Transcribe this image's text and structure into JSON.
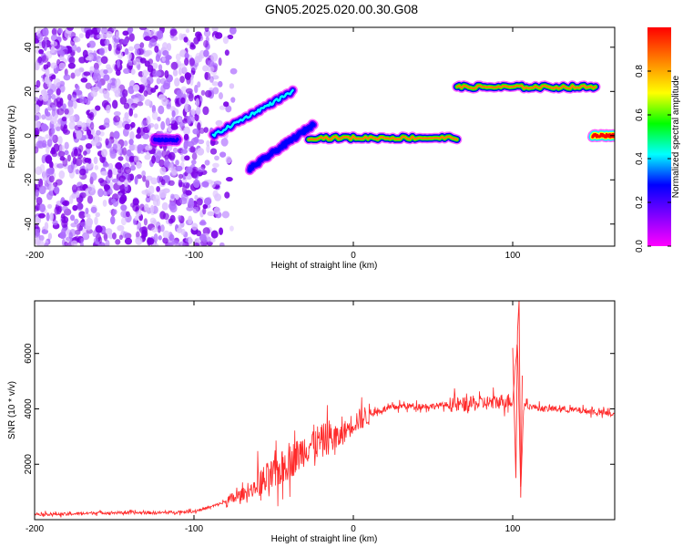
{
  "title": "GN05.2025.020.00.30.G08",
  "chart_data": [
    {
      "type": "heatmap",
      "xlabel": "Height of straight line (km)",
      "ylabel": "Frequency (Hz)",
      "xlim": [
        -200,
        164
      ],
      "ylim": [
        -50,
        49
      ],
      "xticks": [
        -200,
        -100,
        0,
        100
      ],
      "yticks": [
        -40,
        -20,
        0,
        20,
        40
      ],
      "colorbar": {
        "label": "Normalized spectral amplitude",
        "range": [
          0,
          1
        ],
        "ticks": [
          0.0,
          0.2,
          0.4,
          0.6,
          0.8
        ],
        "tick_labels": [
          "0.0",
          "0.2",
          "0.4",
          "0.6",
          "0.8"
        ],
        "colors": [
          "#ff00ff",
          "#8000ff",
          "#0000ff",
          "#00ffff",
          "#00ff00",
          "#ffff00",
          "#ff8000",
          "#ff0000"
        ]
      },
      "features": [
        {
          "x_start": -200,
          "x_end": -85,
          "freq": "scattered noise -50..49",
          "amplitude": 0.15
        },
        {
          "x_start": -125,
          "x_end": -110,
          "freq": -2,
          "amplitude": 0.3
        },
        {
          "x_start": -88,
          "x_end": -38,
          "freq_start": 0,
          "freq_end": 20,
          "amplitude": 0.4
        },
        {
          "x_start": -65,
          "x_end": -25,
          "freq_start": -15,
          "freq_end": 5,
          "amplitude": 0.35
        },
        {
          "x_start": -28,
          "x_end": 65,
          "freq": -1,
          "amplitude": 0.75
        },
        {
          "x_start": 65,
          "x_end": 152,
          "freq": 22,
          "amplitude": 0.8
        },
        {
          "x_start": 150,
          "x_end": 164,
          "freq": 0,
          "amplitude": 0.9
        }
      ]
    },
    {
      "type": "line",
      "xlabel": "Height of straight line (km)",
      "ylabel": "SNR (10 * v/v)",
      "xlim": [
        -200,
        164
      ],
      "ylim": [
        0,
        7900
      ],
      "xticks": [
        -200,
        -100,
        0,
        100
      ],
      "yticks": [
        2000,
        4000,
        6000
      ],
      "color": "#ff2a2a",
      "series": [
        {
          "x": [
            -200,
            -180,
            -160,
            -140,
            -120,
            -100,
            -90,
            -80,
            -70,
            -60,
            -50,
            -40,
            -35,
            -30,
            -25,
            -20,
            -15,
            -10,
            -5,
            0,
            10,
            20,
            30,
            40,
            50,
            60,
            70,
            80,
            90,
            95,
            100,
            103,
            105,
            107,
            110,
            120,
            130,
            140,
            150,
            164
          ],
          "y": [
            200,
            200,
            250,
            250,
            250,
            300,
            450,
            650,
            900,
            1200,
            1600,
            2100,
            2300,
            2600,
            2800,
            2800,
            3000,
            2900,
            3200,
            3500,
            3800,
            4000,
            4100,
            4100,
            4100,
            4150,
            4150,
            4200,
            4250,
            4300,
            4300,
            6500,
            1000,
            4200,
            4100,
            4000,
            4000,
            3950,
            3900,
            3800
          ]
        }
      ]
    }
  ]
}
